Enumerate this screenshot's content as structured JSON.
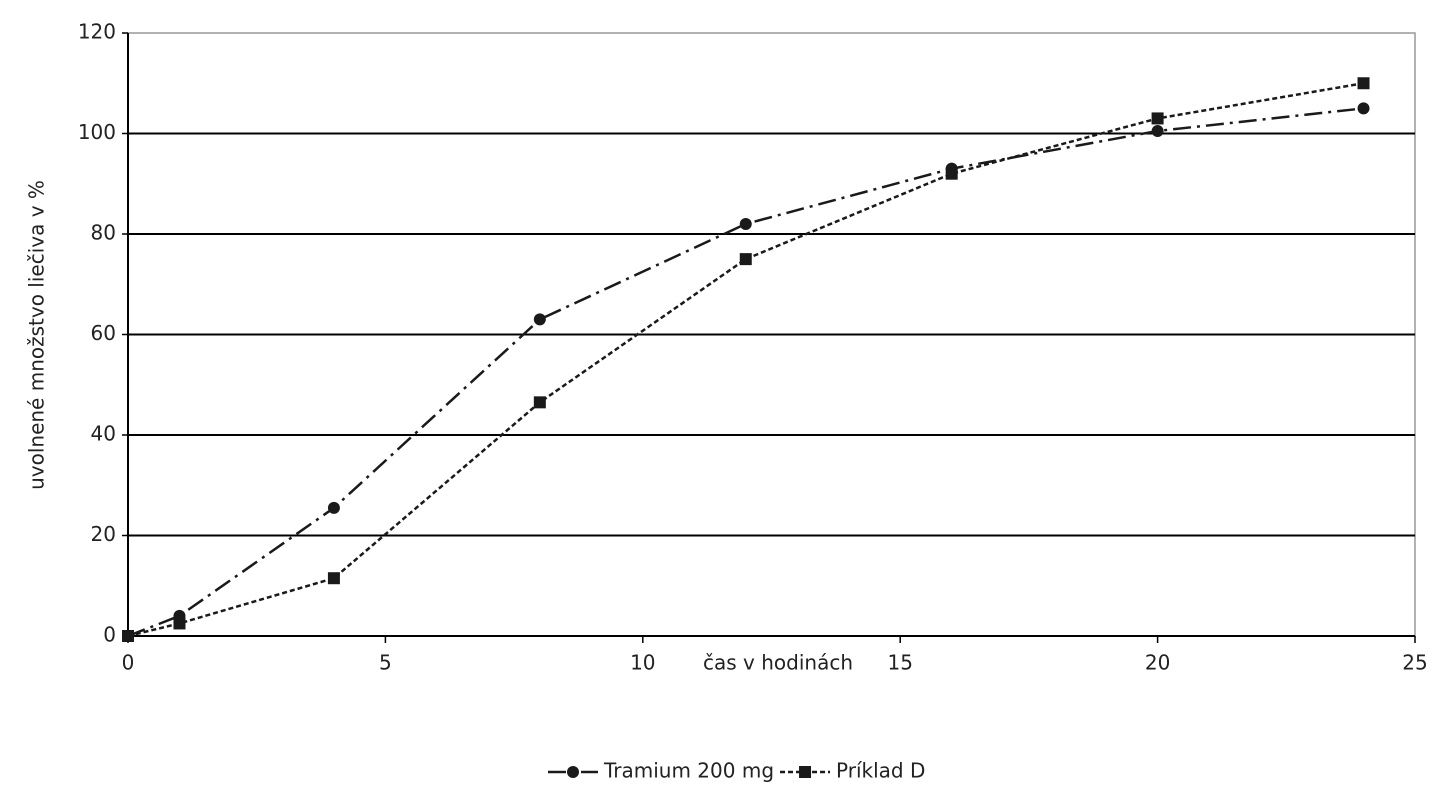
{
  "chart_data": {
    "type": "line",
    "x_label": "čas v hodinách",
    "y_label": "uvolnené množstvo liečiva v %",
    "xlim": [
      0,
      25
    ],
    "xticks": [
      0,
      5,
      10,
      15,
      20,
      25
    ],
    "ylim": [
      0,
      120
    ],
    "yticks": [
      0,
      20,
      40,
      60,
      80,
      100,
      120
    ],
    "grid": true,
    "legend": "bottom",
    "series": [
      {
        "name": "Tramium 200 mg",
        "color": "#1a1a1a",
        "line_style": "dashdot",
        "marker": "circle",
        "x": [
          0,
          1,
          4,
          8,
          12,
          16,
          20,
          24
        ],
        "values": [
          0,
          4,
          25.5,
          63,
          82,
          93,
          100.5,
          105
        ]
      },
      {
        "name": "Príklad D",
        "color": "#1a1a1a",
        "line_style": "dotted",
        "marker": "square",
        "x": [
          0,
          1,
          4,
          8,
          12,
          16,
          20,
          24
        ],
        "values": [
          0,
          2.5,
          11.5,
          46.5,
          75,
          92,
          103,
          110
        ]
      }
    ]
  }
}
